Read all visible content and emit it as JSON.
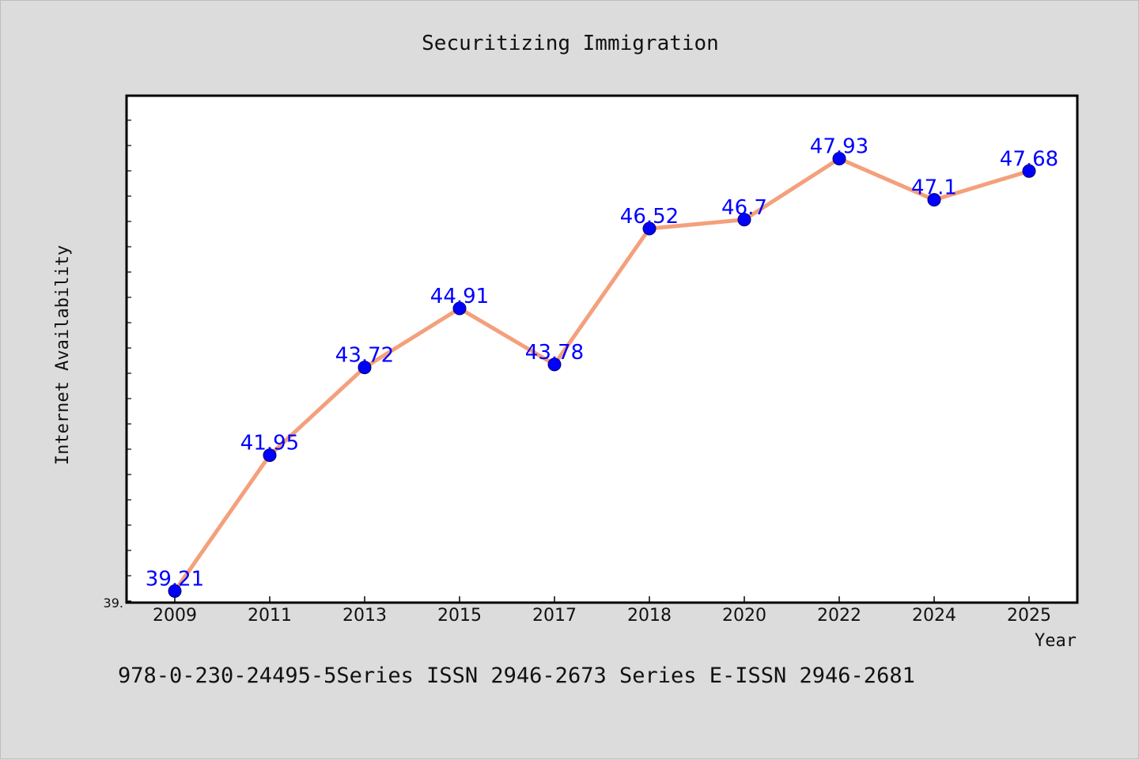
{
  "chart_data": {
    "type": "line",
    "title": "Securitizing Immigration",
    "xlabel": "Year",
    "ylabel": "Internet Availability",
    "categories": [
      "2009",
      "2011",
      "2013",
      "2015",
      "2017",
      "2018",
      "2020",
      "2022",
      "2024",
      "2025"
    ],
    "values": [
      39.21,
      41.95,
      43.72,
      44.91,
      43.78,
      46.52,
      46.7,
      47.93,
      47.1,
      47.68
    ],
    "data_labels": [
      "39.21",
      "41.95",
      "43.72",
      "44.91",
      "43.78",
      "46.52",
      "46.7",
      "47.93",
      "47.1",
      "47.68"
    ],
    "ytick_labels": [
      "39."
    ],
    "ylim": [
      39.2,
      49.2
    ],
    "grid": false,
    "legend": "none",
    "colors": {
      "line": "#f4a07c",
      "marker": "#0000ff",
      "label": "#0000ff"
    }
  },
  "footer": {
    "text": "978-0-230-24495-5Series ISSN 2946-2673 Series E-ISSN 2946-2681"
  }
}
